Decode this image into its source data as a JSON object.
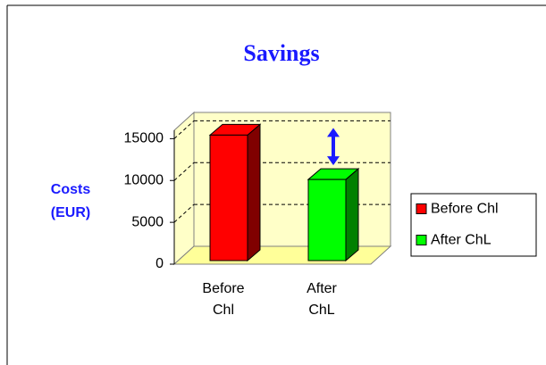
{
  "chart_data": {
    "type": "bar",
    "title": "Savings",
    "y_label": "Costs (EUR)",
    "categories": [
      "Before Chl",
      "After ChL"
    ],
    "series": [
      {
        "name": "Before Chl",
        "color": "#ff0000",
        "side": "#800000"
      },
      {
        "name": "After ChL",
        "color": "#00ff00",
        "side": "#008000"
      }
    ],
    "values": [
      15000,
      9700
    ],
    "ylim": [
      0,
      16000
    ],
    "yticks": [
      0,
      5000,
      10000,
      15000
    ],
    "grid": true,
    "legend": "right"
  }
}
